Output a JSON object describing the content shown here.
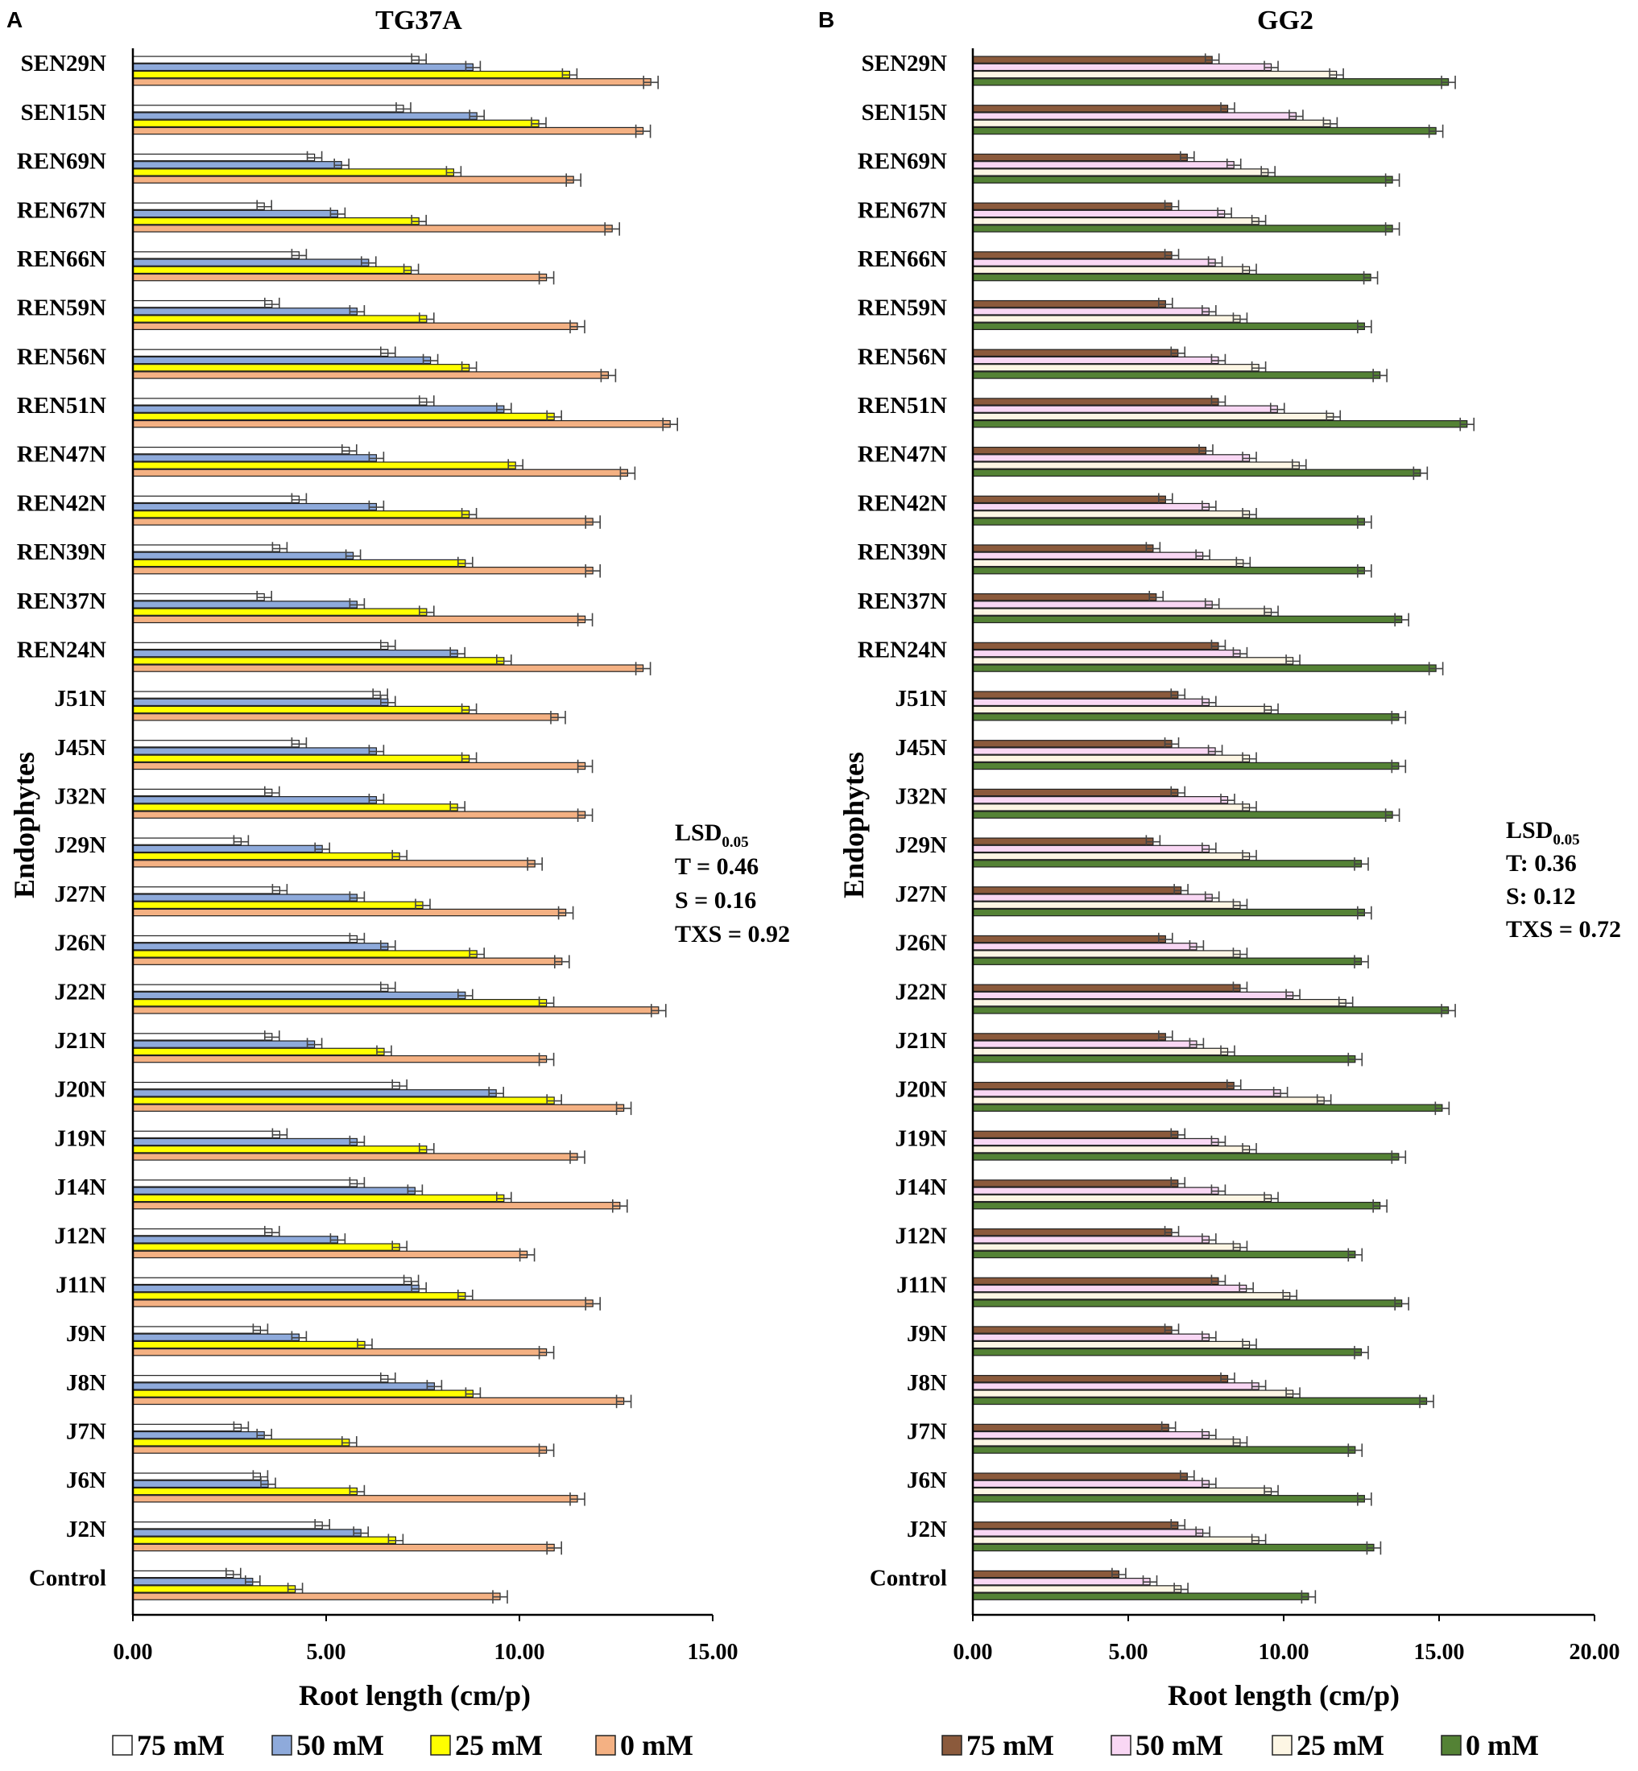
{
  "chart_data": [
    {
      "type": "bar",
      "orientation": "horizontal",
      "panel": "A",
      "title": "TG37A",
      "xlabel": "Root length (cm/p)",
      "ylabel": "Endophytes",
      "xlim": [
        0,
        15
      ],
      "xticks": [
        "0.00",
        "5.00",
        "10.00",
        "15.00"
      ],
      "categories": [
        "SEN29N",
        "SEN15N",
        "REN69N",
        "REN67N",
        "REN66N",
        "REN59N",
        "REN56N",
        "REN51N",
        "REN47N",
        "REN42N",
        "REN39N",
        "REN37N",
        "REN24N",
        "J51N",
        "J45N",
        "J32N",
        "J29N",
        "J27N",
        "J26N",
        "J22N",
        "J21N",
        "J20N",
        "J19N",
        "J14N",
        "J12N",
        "J11N",
        "J9N",
        "J8N",
        "J7N",
        "J6N",
        "J2N",
        "Control"
      ],
      "series": [
        {
          "name": "75 mM",
          "color": "#ffffff",
          "values": [
            7.4,
            7.0,
            4.7,
            3.4,
            4.3,
            3.6,
            6.6,
            7.6,
            5.6,
            4.3,
            3.8,
            3.4,
            6.6,
            6.4,
            4.3,
            3.6,
            2.8,
            3.8,
            5.8,
            6.6,
            3.6,
            6.9,
            3.8,
            5.8,
            3.6,
            7.2,
            3.3,
            6.6,
            2.8,
            3.3,
            4.9,
            2.6
          ]
        },
        {
          "name": "50 mM",
          "color": "#8eaadb",
          "values": [
            8.8,
            8.9,
            5.4,
            5.3,
            6.1,
            5.8,
            7.7,
            9.6,
            6.3,
            6.3,
            5.7,
            5.8,
            8.4,
            6.6,
            6.3,
            6.3,
            4.9,
            5.8,
            6.6,
            8.6,
            4.7,
            9.4,
            5.8,
            7.3,
            5.3,
            7.4,
            4.3,
            7.8,
            3.4,
            3.5,
            5.9,
            3.1
          ]
        },
        {
          "name": "25 mM",
          "color": "#ffff00",
          "values": [
            11.3,
            10.5,
            8.3,
            7.4,
            7.2,
            7.6,
            8.7,
            10.9,
            9.9,
            8.7,
            8.6,
            7.6,
            9.6,
            8.7,
            8.7,
            8.4,
            6.9,
            7.5,
            8.9,
            10.7,
            6.5,
            10.9,
            7.6,
            9.6,
            6.9,
            8.6,
            6.0,
            8.8,
            5.6,
            5.8,
            6.8,
            4.2
          ]
        },
        {
          "name": "0 mM",
          "color": "#f4b183",
          "values": [
            13.4,
            13.2,
            11.4,
            12.4,
            10.7,
            11.5,
            12.3,
            13.9,
            12.8,
            11.9,
            11.9,
            11.7,
            13.2,
            11.0,
            11.7,
            11.7,
            10.4,
            11.2,
            11.1,
            13.6,
            10.7,
            12.7,
            11.5,
            12.6,
            10.2,
            11.9,
            10.7,
            12.7,
            10.7,
            11.5,
            10.9,
            9.5
          ]
        }
      ],
      "annotation": {
        "title": "LSD",
        "subscript": "0.05",
        "lines": [
          "T = 0.46",
          "S = 0.16",
          "TXS = 0.92"
        ]
      },
      "legend": "bottom"
    },
    {
      "type": "bar",
      "orientation": "horizontal",
      "panel": "B",
      "title": "GG2",
      "xlabel": "Root length (cm/p)",
      "ylabel": "Endophytes",
      "xlim": [
        0,
        20
      ],
      "xticks": [
        "0.00",
        "5.00",
        "10.00",
        "15.00",
        "20.00"
      ],
      "categories": [
        "SEN29N",
        "SEN15N",
        "REN69N",
        "REN67N",
        "REN66N",
        "REN59N",
        "REN56N",
        "REN51N",
        "REN47N",
        "REN42N",
        "REN39N",
        "REN37N",
        "REN24N",
        "J51N",
        "J45N",
        "J32N",
        "J29N",
        "J27N",
        "J26N",
        "J22N",
        "J21N",
        "J20N",
        "J19N",
        "J14N",
        "J12N",
        "J11N",
        "J9N",
        "J8N",
        "J7N",
        "J6N",
        "J2N",
        "Control"
      ],
      "series": [
        {
          "name": "75 mM",
          "color": "#8b5a3c",
          "values": [
            7.7,
            8.2,
            6.9,
            6.4,
            6.4,
            6.2,
            6.6,
            7.9,
            7.5,
            6.2,
            5.8,
            5.9,
            7.9,
            6.6,
            6.4,
            6.6,
            5.8,
            6.7,
            6.2,
            8.6,
            6.2,
            8.4,
            6.6,
            6.6,
            6.4,
            7.9,
            6.4,
            8.2,
            6.3,
            6.9,
            6.6,
            4.7
          ]
        },
        {
          "name": "50 mM",
          "color": "#f9d7f4",
          "values": [
            9.6,
            10.4,
            8.4,
            8.1,
            7.8,
            7.6,
            7.9,
            9.8,
            8.9,
            7.6,
            7.4,
            7.7,
            8.6,
            7.6,
            7.8,
            8.2,
            7.6,
            7.7,
            7.2,
            10.3,
            7.2,
            9.9,
            7.9,
            7.9,
            7.6,
            8.8,
            7.6,
            9.2,
            7.6,
            7.6,
            7.4,
            5.7
          ]
        },
        {
          "name": "25 mM",
          "color": "#fdf6e4",
          "values": [
            11.7,
            11.5,
            9.5,
            9.2,
            8.9,
            8.6,
            9.2,
            11.6,
            10.5,
            8.9,
            8.7,
            9.6,
            10.3,
            9.6,
            8.9,
            8.9,
            8.9,
            8.6,
            8.6,
            12.0,
            8.2,
            11.3,
            8.9,
            9.6,
            8.6,
            10.2,
            8.9,
            10.3,
            8.6,
            9.6,
            9.2,
            6.7
          ]
        },
        {
          "name": "0 mM",
          "color": "#548235",
          "values": [
            15.3,
            14.9,
            13.5,
            13.5,
            12.8,
            12.6,
            13.1,
            15.9,
            14.4,
            12.6,
            12.6,
            13.8,
            14.9,
            13.7,
            13.7,
            13.5,
            12.5,
            12.6,
            12.5,
            15.3,
            12.3,
            15.1,
            13.7,
            13.1,
            12.3,
            13.8,
            12.5,
            14.6,
            12.3,
            12.6,
            12.9,
            10.8
          ]
        }
      ],
      "annotation": {
        "title": "LSD",
        "subscript": "0.05",
        "lines": [
          "T: 0.36",
          "S: 0.12",
          "TXS = 0.72"
        ]
      },
      "legend": "bottom"
    }
  ]
}
